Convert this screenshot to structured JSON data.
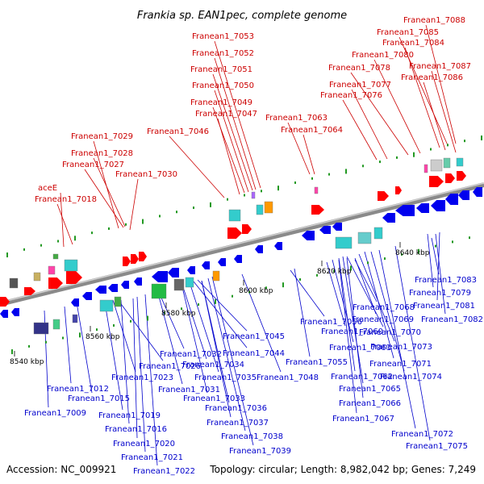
{
  "title": "Frankia sp. EAN1pec, complete genome",
  "footer": {
    "accession": "Accession: NC_009921",
    "topology": "Topology: circular; Length: 8,982,042 bp; Genes: 7,249"
  },
  "colors": {
    "forward_label": "#cc0000",
    "reverse_label": "#0000cc",
    "forward_gene": "#ff0000",
    "reverse_gene": "#0000ee",
    "backbone": "#8a8a8a"
  },
  "kbp_labels": [
    "8540 kbp",
    "8560 kbp",
    "8580 kbp",
    "8600 kbp",
    "8620 kbp",
    "8640 kbp"
  ],
  "top_labels": [
    "Franean1_7088",
    "Franean1_7085",
    "Franean1_7084",
    "Franean1_7080",
    "Franean1_7087",
    "Franean1_7078",
    "Franean1_7086",
    "Franean1_7077",
    "Franean1_7076",
    "Franean1_7053",
    "Franean1_7052",
    "Franean1_7051",
    "Franean1_7050",
    "Franean1_7049",
    "Franean1_7047",
    "Franean1_7063",
    "Franean1_7064",
    "Franean1_7046",
    "Franean1_7029",
    "Franean1_7028",
    "Franean1_7027",
    "Franean1_7030",
    "aceE",
    "Franean1_7018"
  ],
  "bottom_labels": [
    "Franean1_7083",
    "Franean1_7079",
    "Franean1_7081",
    "Franean1_7082",
    "Franean1_7056",
    "Franean1_7068",
    "Franean1_7069",
    "Franean1_7060",
    "Franean1_7070",
    "Franean1_7045",
    "Franean1_7061",
    "Franean1_7073",
    "Franean1_7044",
    "Franean1_7032",
    "Franean1_7055",
    "Franean1_7071",
    "Franean1_7026",
    "Franean1_7034",
    "Franean1_7062",
    "Franean1_7074",
    "Franean1_7023",
    "Franean1_7035",
    "Franean1_7048",
    "Franean1_7065",
    "Franean1_7031",
    "Franean1_7012",
    "Franean1_7033",
    "Franean1_7066",
    "Franean1_7015",
    "Franean1_7036",
    "Franean1_7009",
    "Franean1_7019",
    "Franean1_7067",
    "Franean1_7016",
    "Franean1_7037",
    "Franean1_7072",
    "Franean1_7038",
    "Franean1_7020",
    "Franean1_7075",
    "Franean1_7039",
    "Franean1_7021",
    "Franean1_7022"
  ]
}
